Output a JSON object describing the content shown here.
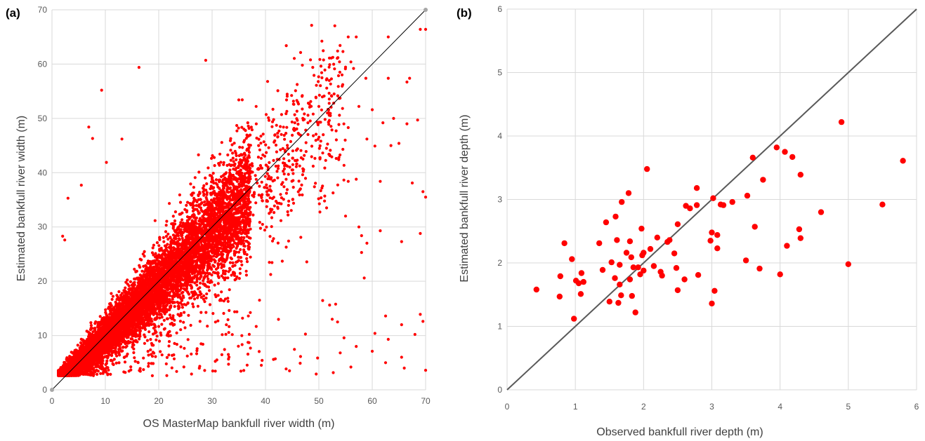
{
  "chart_data": [
    {
      "type": "scatter",
      "panel_label": "(a)",
      "xlabel": "OS MasterMap bankfull river width (m)",
      "ylabel": "Estimated bankfull river width (m)",
      "xlim": [
        0,
        70
      ],
      "ylim": [
        0,
        70
      ],
      "x_ticks": [
        "0",
        "10",
        "20",
        "30",
        "40",
        "50",
        "60",
        "70"
      ],
      "y_ticks": [
        "0",
        "10",
        "20",
        "30",
        "40",
        "50",
        "60",
        "70"
      ],
      "grid": true,
      "legend": "none",
      "marker_color": "#ff0000",
      "reference_line": {
        "from": [
          0,
          0
        ],
        "to": [
          70,
          70
        ],
        "color": "#000000"
      },
      "density_note": "approx. 12000 points densely clustered along y = x, mostly x < 35",
      "points": [
        [
          9.3,
          55.2
        ],
        [
          16.3,
          59.4
        ],
        [
          28.8,
          60.7
        ],
        [
          6.9,
          48.4
        ],
        [
          7.6,
          46.3
        ],
        [
          13.1,
          46.2
        ],
        [
          10.2,
          41.9
        ],
        [
          5.5,
          37.7
        ],
        [
          3.0,
          35.3
        ],
        [
          2.0,
          28.3
        ],
        [
          2.4,
          27.6
        ],
        [
          55.5,
          65.0
        ],
        [
          57.0,
          65.0
        ],
        [
          63.0,
          65.0
        ],
        [
          69.0,
          66.4
        ],
        [
          70.0,
          66.4
        ],
        [
          56.0,
          60.4
        ],
        [
          56.5,
          59.2
        ],
        [
          58.8,
          57.4
        ],
        [
          63.0,
          57.4
        ],
        [
          51.5,
          57.3
        ],
        [
          66.5,
          56.7
        ],
        [
          67.0,
          57.4
        ],
        [
          57.5,
          52.2
        ],
        [
          60.0,
          51.6
        ],
        [
          68.5,
          49.7
        ],
        [
          62.0,
          49.2
        ],
        [
          64.0,
          50.0
        ],
        [
          66.5,
          49.0
        ],
        [
          55.5,
          48.3
        ],
        [
          59.0,
          46.2
        ],
        [
          60.5,
          44.9
        ],
        [
          63.5,
          45.0
        ],
        [
          65.0,
          45.4
        ],
        [
          55.5,
          38.4
        ],
        [
          57.0,
          38.8
        ],
        [
          61.5,
          38.4
        ],
        [
          67.5,
          38.1
        ],
        [
          69.5,
          36.5
        ],
        [
          70.0,
          35.5
        ],
        [
          55.0,
          32.0
        ],
        [
          57.5,
          30.0
        ],
        [
          58.0,
          28.4
        ],
        [
          59.0,
          27.0
        ],
        [
          61.5,
          29.3
        ],
        [
          65.5,
          27.3
        ],
        [
          69.0,
          28.8
        ],
        [
          58.0,
          25.3
        ],
        [
          58.5,
          20.6
        ],
        [
          62.5,
          13.6
        ],
        [
          65.5,
          12.0
        ],
        [
          69.0,
          13.9
        ],
        [
          69.5,
          12.6
        ],
        [
          60.5,
          10.4
        ],
        [
          63.0,
          9.3
        ],
        [
          68.0,
          10.2
        ],
        [
          60.0,
          7.1
        ],
        [
          62.5,
          5.0
        ],
        [
          65.5,
          6.0
        ],
        [
          70.0,
          3.6
        ],
        [
          66.0,
          4.0
        ],
        [
          54.0,
          6.8
        ],
        [
          56.0,
          4.2
        ],
        [
          57.0,
          8.0
        ],
        [
          52.5,
          13.0
        ],
        [
          53.5,
          12.5
        ],
        [
          49.5,
          2.9
        ],
        [
          46.5,
          4.9
        ],
        [
          44.5,
          3.5
        ],
        [
          41.5,
          5.6
        ],
        [
          40.4,
          56.8
        ],
        [
          44.0,
          51.3
        ],
        [
          50.0,
          52.2
        ],
        [
          45.5,
          49.2
        ],
        [
          47.0,
          50.0
        ]
      ]
    },
    {
      "type": "scatter",
      "panel_label": "(b)",
      "xlabel": "Observed bankfull river depth (m)",
      "ylabel": "Estimated bankfull river depth (m)",
      "xlim": [
        0,
        6
      ],
      "ylim": [
        0,
        6
      ],
      "x_ticks": [
        "0",
        "1",
        "2",
        "3",
        "4",
        "5",
        "6"
      ],
      "y_ticks": [
        "0",
        "1",
        "2",
        "3",
        "4",
        "5",
        "6"
      ],
      "grid": true,
      "legend": "none",
      "marker_color": "#ff0000",
      "reference_line": {
        "from": [
          0,
          0
        ],
        "to": [
          6,
          6
        ],
        "color": "#595959"
      },
      "points": [
        [
          0.43,
          1.58
        ],
        [
          0.77,
          1.47
        ],
        [
          0.78,
          1.79
        ],
        [
          0.84,
          2.31
        ],
        [
          0.95,
          2.06
        ],
        [
          0.98,
          1.12
        ],
        [
          1.01,
          1.72
        ],
        [
          1.05,
          1.68
        ],
        [
          1.08,
          1.51
        ],
        [
          1.09,
          1.84
        ],
        [
          1.12,
          1.7
        ],
        [
          1.35,
          2.31
        ],
        [
          1.4,
          1.89
        ],
        [
          1.45,
          2.64
        ],
        [
          1.5,
          1.39
        ],
        [
          1.53,
          2.01
        ],
        [
          1.58,
          1.76
        ],
        [
          1.59,
          2.73
        ],
        [
          1.61,
          2.36
        ],
        [
          1.63,
          1.37
        ],
        [
          1.65,
          1.66
        ],
        [
          1.65,
          1.97
        ],
        [
          1.67,
          1.49
        ],
        [
          1.68,
          2.96
        ],
        [
          1.75,
          2.16
        ],
        [
          1.78,
          3.1
        ],
        [
          1.8,
          1.74
        ],
        [
          1.8,
          2.34
        ],
        [
          1.82,
          2.09
        ],
        [
          1.83,
          1.48
        ],
        [
          1.85,
          1.93
        ],
        [
          1.88,
          1.22
        ],
        [
          1.92,
          1.93
        ],
        [
          1.95,
          1.82
        ],
        [
          1.97,
          2.54
        ],
        [
          1.98,
          2.12
        ],
        [
          2.0,
          1.88
        ],
        [
          2.0,
          2.16
        ],
        [
          2.05,
          3.48
        ],
        [
          2.1,
          2.22
        ],
        [
          2.15,
          1.95
        ],
        [
          2.2,
          2.4
        ],
        [
          2.25,
          1.86
        ],
        [
          2.27,
          1.8
        ],
        [
          2.35,
          2.33
        ],
        [
          2.38,
          2.36
        ],
        [
          2.45,
          2.15
        ],
        [
          2.48,
          1.92
        ],
        [
          2.5,
          2.61
        ],
        [
          2.5,
          1.57
        ],
        [
          2.6,
          1.74
        ],
        [
          2.62,
          2.9
        ],
        [
          2.68,
          2.86
        ],
        [
          2.78,
          2.91
        ],
        [
          2.78,
          3.18
        ],
        [
          2.8,
          1.81
        ],
        [
          2.98,
          2.35
        ],
        [
          3.0,
          1.36
        ],
        [
          3.0,
          2.48
        ],
        [
          3.02,
          3.02
        ],
        [
          3.04,
          1.56
        ],
        [
          3.08,
          2.23
        ],
        [
          3.08,
          2.44
        ],
        [
          3.13,
          2.92
        ],
        [
          3.17,
          2.91
        ],
        [
          3.3,
          2.96
        ],
        [
          3.5,
          2.04
        ],
        [
          3.52,
          3.06
        ],
        [
          3.6,
          3.66
        ],
        [
          3.63,
          2.57
        ],
        [
          3.7,
          1.91
        ],
        [
          3.75,
          3.31
        ],
        [
          3.95,
          3.82
        ],
        [
          4.0,
          1.82
        ],
        [
          4.07,
          3.75
        ],
        [
          4.1,
          2.27
        ],
        [
          4.18,
          3.67
        ],
        [
          4.28,
          2.53
        ],
        [
          4.3,
          2.39
        ],
        [
          4.3,
          3.39
        ],
        [
          4.6,
          2.8
        ],
        [
          4.9,
          4.22
        ],
        [
          5.0,
          1.98
        ],
        [
          5.5,
          2.92
        ],
        [
          5.8,
          3.61
        ]
      ]
    }
  ]
}
